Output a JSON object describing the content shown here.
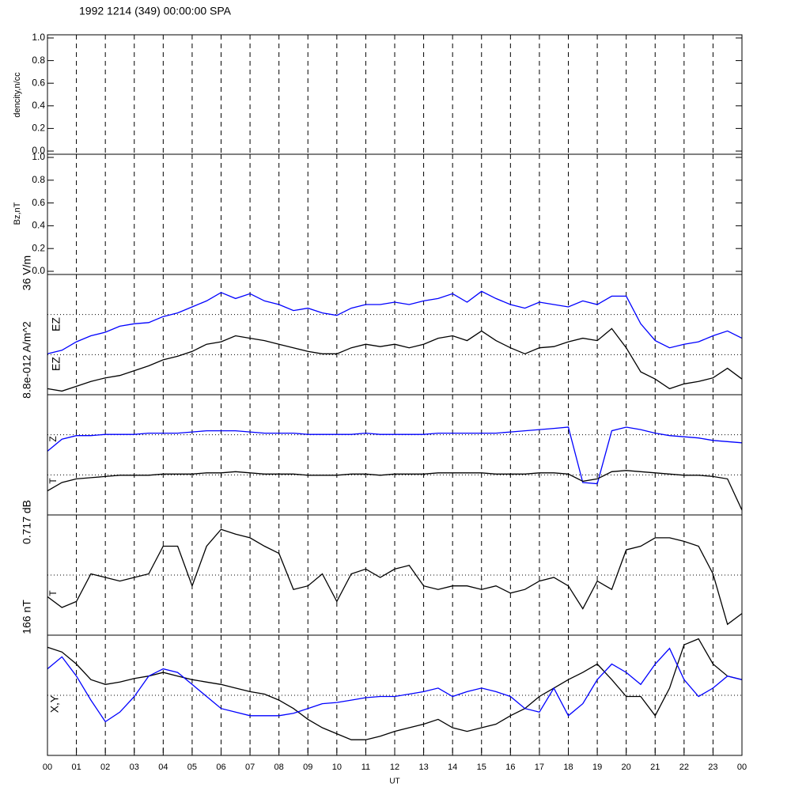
{
  "chart_data": [
    {
      "type": "line",
      "title": "1992 1214 (349) 00:00:00 SPA",
      "labels": [
        "dencity,n/cc"
      ],
      "ylim": [
        0,
        1
      ],
      "yticks": [
        {
          "value": 0,
          "label": "0.0"
        },
        {
          "value": 0.2,
          "label": "0.2"
        },
        {
          "value": 0.4,
          "label": "0.4"
        },
        {
          "value": 0.6,
          "label": "0.6"
        },
        {
          "value": 0.8,
          "label": "0.8"
        },
        {
          "value": 1,
          "label": "1.0"
        }
      ]
    },
    {
      "type": "line",
      "labels": [
        "Bz,nT"
      ],
      "ylim": [
        0,
        1
      ],
      "yticks": [
        {
          "value": 0,
          "label": "0.0"
        },
        {
          "value": 0.2,
          "label": "0.2"
        },
        {
          "value": 0.4,
          "label": "0.4"
        },
        {
          "value": 0.6,
          "label": "0.6"
        },
        {
          "value": 0.8,
          "label": "0.8"
        },
        {
          "value": 1,
          "label": "1.0"
        }
      ]
    },
    {
      "type": "line",
      "labels": [
        "36 V/m",
        "EZ",
        "EZ",
        "8.8e-012 A/m^2"
      ],
      "ylim": [
        0,
        1
      ],
      "x": [
        0,
        0.5,
        1,
        1.5,
        2,
        2.5,
        3,
        3.5,
        4,
        4.5,
        5,
        5.5,
        6,
        6.5,
        7,
        7.5,
        8,
        8.5,
        9,
        9.5,
        10,
        10.5,
        11,
        11.5,
        12,
        12.5,
        13,
        13.5,
        14,
        14.5,
        15,
        15.5,
        16,
        16.5,
        17,
        17.5,
        18,
        18.5,
        19,
        19.5,
        20,
        20.5,
        21,
        21.5,
        22,
        22.5,
        23,
        23.5,
        24
      ],
      "series": [
        {
          "color": "#0000ff",
          "values": [
            0.34,
            0.37,
            0.44,
            0.49,
            0.52,
            0.57,
            0.59,
            0.6,
            0.65,
            0.68,
            0.73,
            0.78,
            0.85,
            0.8,
            0.84,
            0.78,
            0.75,
            0.7,
            0.72,
            0.68,
            0.66,
            0.72,
            0.75,
            0.75,
            0.77,
            0.75,
            0.78,
            0.8,
            0.84,
            0.77,
            0.86,
            0.8,
            0.75,
            0.72,
            0.77,
            0.75,
            0.73,
            0.78,
            0.75,
            0.82,
            0.82,
            0.59,
            0.45,
            0.39,
            0.42,
            0.44,
            0.49,
            0.53,
            0.47
          ]
        },
        {
          "color": "#000000",
          "values": [
            0.05,
            0.03,
            0.07,
            0.11,
            0.14,
            0.16,
            0.2,
            0.24,
            0.29,
            0.32,
            0.36,
            0.42,
            0.44,
            0.49,
            0.47,
            0.45,
            0.42,
            0.39,
            0.36,
            0.34,
            0.34,
            0.39,
            0.42,
            0.4,
            0.42,
            0.39,
            0.42,
            0.47,
            0.49,
            0.45,
            0.53,
            0.45,
            0.39,
            0.34,
            0.39,
            0.4,
            0.44,
            0.47,
            0.45,
            0.55,
            0.39,
            0.19,
            0.13,
            0.05,
            0.09,
            0.11,
            0.14,
            0.22,
            0.13
          ]
        }
      ]
    },
    {
      "type": "line",
      "labels": [
        "Z",
        "T",
        "0.717 dB"
      ],
      "ylim": [
        0,
        1
      ],
      "x": [
        0,
        0.5,
        1,
        1.5,
        2,
        2.5,
        3,
        3.5,
        4,
        4.5,
        5,
        5.5,
        6,
        6.5,
        7,
        7.5,
        8,
        8.5,
        9,
        9.5,
        10,
        10.5,
        11,
        11.5,
        12,
        12.5,
        13,
        13.5,
        14,
        14.5,
        15,
        15.5,
        16,
        16.5,
        17,
        17.5,
        18,
        18.5,
        19,
        19.5,
        20,
        20.5,
        21,
        21.5,
        22,
        22.5,
        23,
        23.5,
        24
      ],
      "series": [
        {
          "color": "#0000ff",
          "values": [
            0.53,
            0.63,
            0.66,
            0.66,
            0.67,
            0.67,
            0.67,
            0.68,
            0.68,
            0.68,
            0.69,
            0.7,
            0.7,
            0.7,
            0.69,
            0.68,
            0.68,
            0.68,
            0.67,
            0.67,
            0.67,
            0.67,
            0.68,
            0.67,
            0.67,
            0.67,
            0.67,
            0.68,
            0.68,
            0.68,
            0.68,
            0.68,
            0.69,
            0.7,
            0.71,
            0.72,
            0.73,
            0.27,
            0.26,
            0.7,
            0.73,
            0.71,
            0.68,
            0.66,
            0.65,
            0.64,
            0.62,
            0.61,
            0.6
          ]
        },
        {
          "color": "#000000",
          "values": [
            0.2,
            0.27,
            0.3,
            0.31,
            0.32,
            0.33,
            0.33,
            0.33,
            0.34,
            0.34,
            0.34,
            0.35,
            0.35,
            0.36,
            0.35,
            0.34,
            0.34,
            0.34,
            0.33,
            0.33,
            0.33,
            0.34,
            0.34,
            0.33,
            0.34,
            0.34,
            0.34,
            0.35,
            0.35,
            0.35,
            0.35,
            0.34,
            0.34,
            0.34,
            0.35,
            0.35,
            0.34,
            0.28,
            0.3,
            0.36,
            0.37,
            0.36,
            0.35,
            0.34,
            0.33,
            0.33,
            0.32,
            0.3,
            0.04
          ]
        }
      ]
    },
    {
      "type": "line",
      "labels": [
        "T",
        "166 nT"
      ],
      "ylim": [
        0,
        1
      ],
      "x": [
        0,
        0.5,
        1,
        1.5,
        2,
        2.5,
        3,
        3.5,
        4,
        4.5,
        5,
        5.5,
        6,
        6.5,
        7,
        7.5,
        8,
        8.5,
        9,
        9.5,
        10,
        10.5,
        11,
        11.5,
        12,
        12.5,
        13,
        13.5,
        14,
        14.5,
        15,
        15.5,
        16,
        16.5,
        17,
        17.5,
        18,
        18.5,
        19,
        19.5,
        20,
        20.5,
        21,
        21.5,
        22,
        22.5,
        23,
        23.5,
        24
      ],
      "series": [
        {
          "color": "#000000",
          "values": [
            0.32,
            0.23,
            0.28,
            0.51,
            0.48,
            0.45,
            0.48,
            0.51,
            0.74,
            0.74,
            0.41,
            0.74,
            0.88,
            0.84,
            0.81,
            0.74,
            0.68,
            0.38,
            0.41,
            0.51,
            0.28,
            0.51,
            0.55,
            0.48,
            0.55,
            0.58,
            0.41,
            0.38,
            0.41,
            0.41,
            0.38,
            0.41,
            0.35,
            0.38,
            0.45,
            0.48,
            0.41,
            0.22,
            0.45,
            0.38,
            0.71,
            0.74,
            0.81,
            0.81,
            0.78,
            0.74,
            0.51,
            0.09,
            0.18
          ]
        }
      ]
    },
    {
      "type": "line",
      "labels": [
        "X,Y"
      ],
      "ylim": [
        0,
        1
      ],
      "xlabel": "UT",
      "xlim": [
        0,
        24
      ],
      "xticks": [
        {
          "value": 0,
          "label": "00"
        },
        {
          "value": 1,
          "label": "01"
        },
        {
          "value": 2,
          "label": "02"
        },
        {
          "value": 3,
          "label": "03"
        },
        {
          "value": 4,
          "label": "04"
        },
        {
          "value": 5,
          "label": "05"
        },
        {
          "value": 6,
          "label": "06"
        },
        {
          "value": 7,
          "label": "07"
        },
        {
          "value": 8,
          "label": "08"
        },
        {
          "value": 9,
          "label": "09"
        },
        {
          "value": 10,
          "label": "10"
        },
        {
          "value": 11,
          "label": "11"
        },
        {
          "value": 12,
          "label": "12"
        },
        {
          "value": 13,
          "label": "13"
        },
        {
          "value": 14,
          "label": "14"
        },
        {
          "value": 15,
          "label": "15"
        },
        {
          "value": 16,
          "label": "16"
        },
        {
          "value": 17,
          "label": "17"
        },
        {
          "value": 18,
          "label": "18"
        },
        {
          "value": 19,
          "label": "19"
        },
        {
          "value": 20,
          "label": "20"
        },
        {
          "value": 21,
          "label": "21"
        },
        {
          "value": 22,
          "label": "22"
        },
        {
          "value": 23,
          "label": "23"
        },
        {
          "value": 24,
          "label": "00"
        }
      ],
      "x": [
        0,
        0.5,
        1,
        1.5,
        2,
        2.5,
        3,
        3.5,
        4,
        4.5,
        5,
        5.5,
        6,
        6.5,
        7,
        7.5,
        8,
        8.5,
        9,
        9.5,
        10,
        10.5,
        11,
        11.5,
        12,
        12.5,
        13,
        13.5,
        14,
        14.5,
        15,
        15.5,
        16,
        16.5,
        17,
        17.5,
        18,
        18.5,
        19,
        19.5,
        20,
        20.5,
        21,
        21.5,
        22,
        22.5,
        23,
        23.5,
        24
      ],
      "series": [
        {
          "color": "#000000",
          "values": [
            0.9,
            0.86,
            0.76,
            0.63,
            0.59,
            0.61,
            0.64,
            0.66,
            0.69,
            0.66,
            0.63,
            0.61,
            0.59,
            0.56,
            0.53,
            0.51,
            0.46,
            0.39,
            0.3,
            0.23,
            0.18,
            0.13,
            0.13,
            0.16,
            0.2,
            0.23,
            0.26,
            0.3,
            0.23,
            0.2,
            0.23,
            0.26,
            0.33,
            0.39,
            0.49,
            0.56,
            0.63,
            0.69,
            0.76,
            0.63,
            0.49,
            0.49,
            0.33,
            0.56,
            0.92,
            0.97,
            0.76,
            0.66,
            0.63
          ]
        },
        {
          "color": "#0000ff",
          "values": [
            0.72,
            0.82,
            0.66,
            0.46,
            0.28,
            0.36,
            0.49,
            0.66,
            0.72,
            0.69,
            0.59,
            0.49,
            0.39,
            0.36,
            0.33,
            0.33,
            0.33,
            0.35,
            0.39,
            0.43,
            0.44,
            0.46,
            0.48,
            0.49,
            0.49,
            0.51,
            0.53,
            0.56,
            0.49,
            0.53,
            0.56,
            0.53,
            0.49,
            0.39,
            0.36,
            0.56,
            0.33,
            0.43,
            0.63,
            0.76,
            0.69,
            0.59,
            0.76,
            0.89,
            0.63,
            0.49,
            0.56,
            0.66,
            0.63
          ]
        }
      ]
    }
  ]
}
